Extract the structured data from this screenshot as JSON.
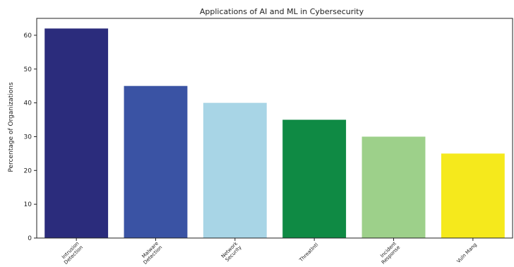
{
  "chart_data": {
    "type": "bar",
    "title": "Applications of AI and ML in Cybersecurity",
    "xlabel": "",
    "ylabel": "Percentage of Organizations",
    "categories": [
      [
        "Intrusion",
        "Detection"
      ],
      [
        "Malware",
        "Detection"
      ],
      [
        "Network",
        "Security"
      ],
      [
        "ThreatIntl"
      ],
      [
        "Incident",
        "Response"
      ],
      [
        "Vuln Mang"
      ]
    ],
    "values": [
      62,
      45,
      40,
      35,
      30,
      25
    ],
    "colors": [
      "#2b2c7c",
      "#3a53a4",
      "#a8d5e6",
      "#0f8a44",
      "#9dd08a",
      "#f5e91c"
    ],
    "ylim": [
      0,
      65
    ],
    "yticks": [
      0,
      10,
      20,
      30,
      40,
      50,
      60
    ],
    "grid": false,
    "legend": "none"
  }
}
